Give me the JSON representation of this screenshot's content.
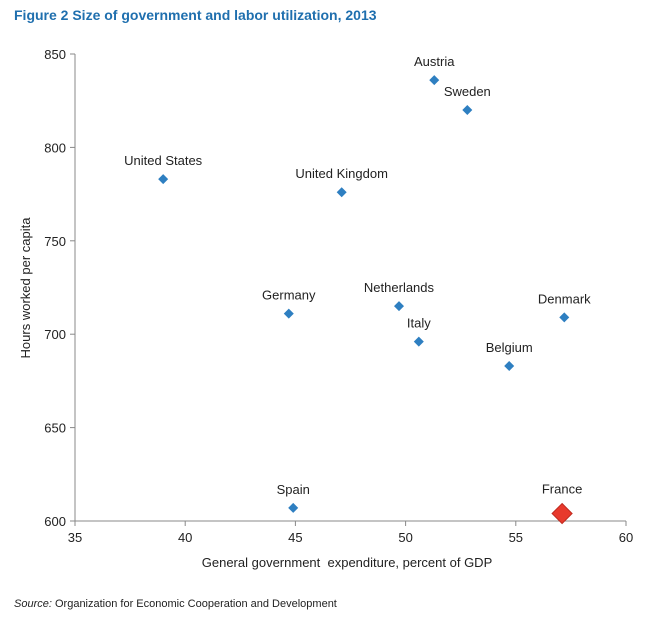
{
  "figure_title": "Figure 2 Size of government and labor utilization, 2013",
  "source_label": "Source:",
  "source_text": "Organization for Economic Cooperation and Development",
  "chart_data": {
    "type": "scatter",
    "title": "Figure 2 Size of government and labor utilization, 2013",
    "xlabel": "General government  expenditure, percent of GDP",
    "ylabel": "Hours worked per capita",
    "xlim": [
      35,
      60
    ],
    "ylim": [
      600,
      850
    ],
    "xticks": [
      35,
      40,
      45,
      50,
      55,
      60
    ],
    "yticks": [
      600,
      650,
      700,
      750,
      800,
      850
    ],
    "grid": false,
    "colors": {
      "point": "#2e7fc1",
      "highlight": "#e8392c"
    },
    "points": [
      {
        "label": "Austria",
        "x": 51.3,
        "y": 836
      },
      {
        "label": "Sweden",
        "x": 52.8,
        "y": 820
      },
      {
        "label": "United States",
        "x": 39.0,
        "y": 783
      },
      {
        "label": "United Kingdom",
        "x": 47.1,
        "y": 776
      },
      {
        "label": "Germany",
        "x": 44.7,
        "y": 711
      },
      {
        "label": "Netherlands",
        "x": 49.7,
        "y": 715
      },
      {
        "label": "Denmark",
        "x": 57.2,
        "y": 709
      },
      {
        "label": "Italy",
        "x": 50.6,
        "y": 696
      },
      {
        "label": "Belgium",
        "x": 54.7,
        "y": 683
      },
      {
        "label": "Spain",
        "x": 44.9,
        "y": 607
      },
      {
        "label": "France",
        "x": 57.1,
        "y": 604,
        "highlight": true
      }
    ]
  }
}
